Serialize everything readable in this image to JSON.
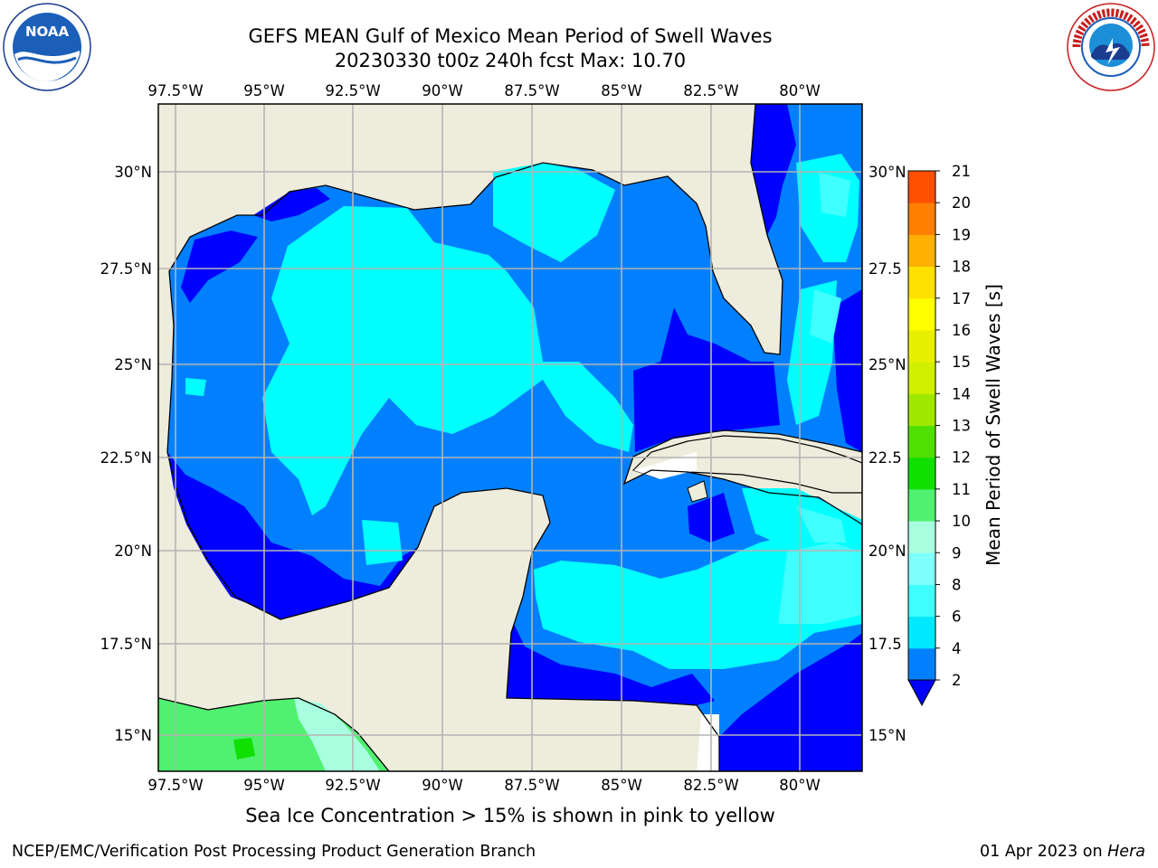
{
  "title": {
    "line1": "GEFS MEAN Gulf of Mexico Mean Period of Swell Waves",
    "line2": "20230330 t00z 240h fcst   Max: 10.70"
  },
  "logos": {
    "left": {
      "icon": "noaa-logo",
      "text": "NOAA"
    },
    "right": {
      "icon": "nws-logo",
      "text": "NATIONAL WEATHER SERVICE"
    }
  },
  "map": {
    "lon_labels": [
      "97.5°W",
      "95°W",
      "92.5°W",
      "90°W",
      "87.5°W",
      "85°W",
      "82.5°W",
      "80°W"
    ],
    "lat_labels_left": [
      "30°N",
      "27.5°N",
      "25°N",
      "22.5°N",
      "20°N",
      "17.5°N",
      "15°N"
    ],
    "lat_labels_right": [
      "30°N",
      "27.5",
      "25°N",
      "22.5",
      "20°N",
      "17.5",
      "15°N"
    ],
    "colors": {
      "land": "#eeecdc",
      "ocean_base": "#0080ff",
      "grid": "#b4b4b4",
      "coast": "#000000"
    }
  },
  "colorbar": {
    "label": "Mean Period of Swell Waves [s]",
    "ticks": [
      "2",
      "4",
      "6",
      "8",
      "9",
      "10",
      "11",
      "12",
      "13",
      "14",
      "15",
      "16",
      "17",
      "18",
      "19",
      "20",
      "21"
    ],
    "colors": [
      "#0080ff",
      "#00e8ff",
      "#40ffff",
      "#80ffff",
      "#a8ffe0",
      "#50f070",
      "#10e000",
      "#50e000",
      "#a0e800",
      "#d0f000",
      "#e8f000",
      "#ffff00",
      "#ffe000",
      "#ffb000",
      "#ff8000",
      "#ff5000",
      "#ff2000",
      "#ff0000"
    ],
    "extend_color": "#0000ff"
  },
  "caption": "Sea Ice Concentration > 15% is shown in pink to yellow",
  "footer": {
    "left": "NCEP/EMC/Verification Post Processing Product Generation Branch",
    "right_prefix": "01 Apr 2023 on ",
    "right_machine": "Hera"
  }
}
